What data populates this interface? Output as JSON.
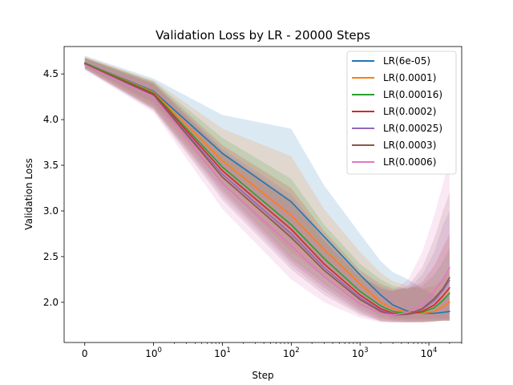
{
  "chart_data": {
    "type": "line",
    "title": "Validation Loss by LR - 20000 Steps",
    "xlabel": "Step",
    "ylabel": "Validation Loss",
    "xscale": "symlog",
    "xlim": [
      -0.3,
      30000
    ],
    "ylim": [
      1.56,
      4.8
    ],
    "xticks": [
      {
        "value": 0,
        "base": "0",
        "exp": ""
      },
      {
        "value": 1,
        "base": "10",
        "exp": "0"
      },
      {
        "value": 10,
        "base": "10",
        "exp": "1"
      },
      {
        "value": 100,
        "base": "10",
        "exp": "2"
      },
      {
        "value": 1000,
        "base": "10",
        "exp": "3"
      },
      {
        "value": 10000,
        "base": "10",
        "exp": "4"
      }
    ],
    "yticks": [
      "2.0",
      "2.5",
      "3.0",
      "3.5",
      "4.0",
      "4.5"
    ],
    "legend_position": "top-right",
    "grid": false,
    "x": [
      0,
      1,
      10,
      100,
      300,
      1000,
      2000,
      3000,
      5000,
      8000,
      12000,
      16000,
      20000
    ],
    "series": [
      {
        "name": "LR(6e-05)",
        "color": "#1f77b4",
        "values": [
          4.62,
          4.31,
          3.63,
          3.1,
          2.72,
          2.3,
          2.08,
          1.97,
          1.9,
          1.88,
          1.88,
          1.89,
          1.9
        ],
        "lower": [
          4.58,
          4.18,
          3.4,
          2.68,
          2.4,
          2.05,
          1.88,
          1.83,
          1.82,
          1.82,
          1.82,
          1.82,
          1.82
        ],
        "upper": [
          4.7,
          4.45,
          4.05,
          3.9,
          3.28,
          2.75,
          2.45,
          2.33,
          2.25,
          2.15,
          2.08,
          2.05,
          2.1
        ]
      },
      {
        "name": "LR(0.0001)",
        "color": "#ff7f0e",
        "values": [
          4.62,
          4.3,
          3.55,
          2.95,
          2.58,
          2.2,
          2.0,
          1.93,
          1.89,
          1.88,
          1.9,
          1.95,
          2.0
        ],
        "lower": [
          4.57,
          4.15,
          3.3,
          2.55,
          2.28,
          1.98,
          1.84,
          1.81,
          1.8,
          1.8,
          1.8,
          1.8,
          1.8
        ],
        "upper": [
          4.69,
          4.43,
          3.9,
          3.6,
          3.02,
          2.55,
          2.32,
          2.23,
          2.18,
          2.15,
          2.18,
          2.25,
          2.35
        ]
      },
      {
        "name": "LR(0.00016)",
        "color": "#2ca02c",
        "values": [
          4.62,
          4.29,
          3.48,
          2.85,
          2.48,
          2.12,
          1.96,
          1.9,
          1.88,
          1.89,
          1.94,
          2.02,
          2.1
        ],
        "lower": [
          4.56,
          4.13,
          3.24,
          2.48,
          2.2,
          1.93,
          1.82,
          1.8,
          1.79,
          1.79,
          1.79,
          1.8,
          1.8
        ],
        "upper": [
          4.68,
          4.42,
          3.8,
          3.35,
          2.85,
          2.42,
          2.25,
          2.18,
          2.15,
          2.18,
          2.3,
          2.45,
          2.6
        ]
      },
      {
        "name": "LR(0.0002)",
        "color": "#d62728",
        "values": [
          4.61,
          4.28,
          3.44,
          2.8,
          2.42,
          2.08,
          1.93,
          1.88,
          1.87,
          1.9,
          1.97,
          2.07,
          2.16
        ],
        "lower": [
          4.56,
          4.12,
          3.2,
          2.44,
          2.16,
          1.9,
          1.8,
          1.79,
          1.78,
          1.78,
          1.79,
          1.8,
          1.8
        ],
        "upper": [
          4.68,
          4.41,
          3.72,
          3.25,
          2.78,
          2.35,
          2.2,
          2.15,
          2.15,
          2.22,
          2.4,
          2.6,
          2.75
        ]
      },
      {
        "name": "LR(0.00025)",
        "color": "#9467bd",
        "values": [
          4.61,
          4.27,
          3.4,
          2.75,
          2.38,
          2.05,
          1.91,
          1.87,
          1.87,
          1.92,
          2.02,
          2.13,
          2.24
        ],
        "lower": [
          4.55,
          4.11,
          3.16,
          2.4,
          2.12,
          1.88,
          1.79,
          1.78,
          1.78,
          1.78,
          1.79,
          1.8,
          1.8
        ],
        "upper": [
          4.67,
          4.4,
          3.68,
          3.18,
          2.72,
          2.3,
          2.17,
          2.13,
          2.15,
          2.3,
          2.55,
          2.85,
          3.0
        ]
      },
      {
        "name": "LR(0.0003)",
        "color": "#8c564b",
        "values": [
          4.61,
          4.27,
          3.37,
          2.71,
          2.35,
          2.03,
          1.9,
          1.86,
          1.87,
          1.93,
          2.04,
          2.15,
          2.27
        ],
        "lower": [
          4.55,
          4.1,
          3.12,
          2.36,
          2.08,
          1.86,
          1.79,
          1.78,
          1.78,
          1.78,
          1.79,
          1.8,
          1.8
        ],
        "upper": [
          4.67,
          4.39,
          3.65,
          3.12,
          2.68,
          2.28,
          2.15,
          2.12,
          2.18,
          2.38,
          2.7,
          3.0,
          3.2
        ]
      },
      {
        "name": "LR(0.0006)",
        "color": "#e377c2",
        "values": [
          4.6,
          4.25,
          3.3,
          2.62,
          2.28,
          1.98,
          1.88,
          1.86,
          1.89,
          1.98,
          2.12,
          2.25,
          2.38
        ],
        "lower": [
          4.54,
          4.08,
          3.02,
          2.25,
          2.0,
          1.83,
          1.78,
          1.78,
          1.78,
          1.79,
          1.8,
          1.8,
          1.8
        ],
        "upper": [
          4.66,
          4.37,
          3.55,
          3.0,
          2.58,
          2.22,
          2.12,
          2.12,
          2.25,
          2.55,
          2.95,
          3.3,
          3.55
        ]
      }
    ]
  }
}
